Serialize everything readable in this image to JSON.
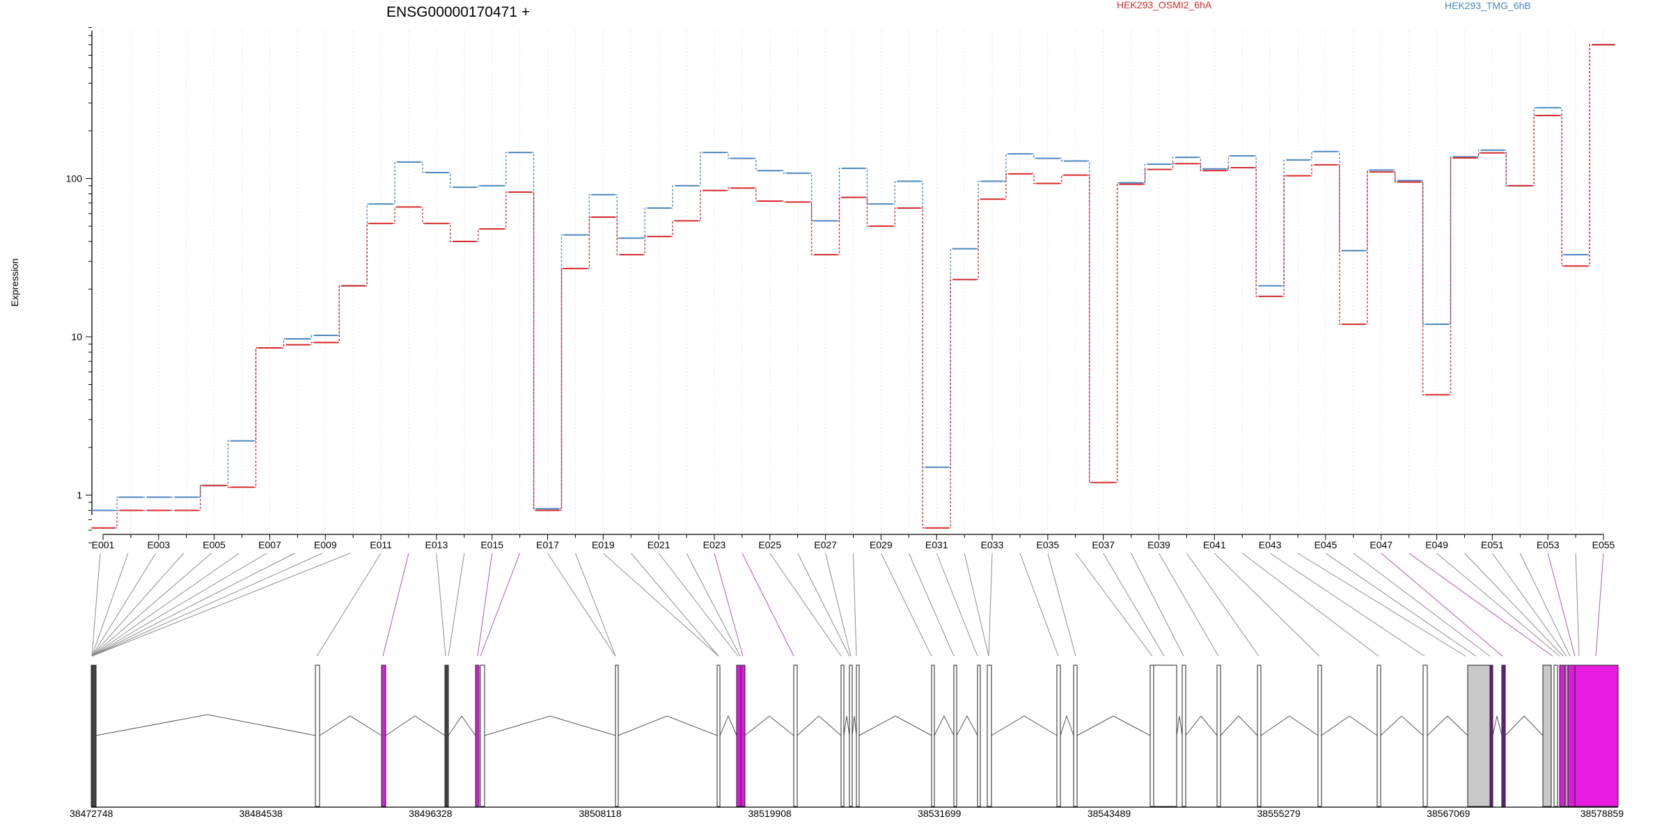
{
  "chart_data": {
    "type": "line",
    "title": "ENSG00000170471 +",
    "xlabel": "",
    "ylabel": "Expression",
    "y_scale": "log",
    "ylim": [
      0.45,
      900
    ],
    "y_ticks": [
      1,
      10,
      100
    ],
    "y_tick_labels": [
      "1",
      "10",
      "100"
    ],
    "grid": "vertical dotted",
    "legend_placement": "top",
    "categories": [
      "E001",
      "E002",
      "E003",
      "E004",
      "E005",
      "E006",
      "E007",
      "E008",
      "E009",
      "E010",
      "E011",
      "E012",
      "E013",
      "E014",
      "E015",
      "E016",
      "E017",
      "E018",
      "E019",
      "E020",
      "E021",
      "E022",
      "E023",
      "E024",
      "E025",
      "E026",
      "E027",
      "E028",
      "E029",
      "E030",
      "E031",
      "E032",
      "E033",
      "E034",
      "E035",
      "E036",
      "E037",
      "E038",
      "E039",
      "E040",
      "E041",
      "E042",
      "E043",
      "E044",
      "E045",
      "E046",
      "E047",
      "E048",
      "E049",
      "E050",
      "E051",
      "E052",
      "E053",
      "E054",
      "E055"
    ],
    "x_tick_labels": [
      "E001",
      "E003",
      "E005",
      "E007",
      "E009",
      "E011",
      "E013",
      "E015",
      "E017",
      "E019",
      "E021",
      "E023",
      "E025",
      "E027",
      "E029",
      "E031",
      "E033",
      "E035",
      "E037",
      "E039",
      "E041",
      "E043",
      "E045",
      "E047",
      "E049",
      "E051",
      "E053",
      "E055"
    ],
    "series": [
      {
        "name": "HEK293_OSMI2_6hA",
        "color": "#d62728",
        "values": [
          0.62,
          0.8,
          0.8,
          0.8,
          1.15,
          1.12,
          8.5,
          8.9,
          9.2,
          21,
          52,
          66,
          52,
          40,
          48,
          82,
          0.8,
          27,
          57,
          33,
          43,
          54,
          84,
          87,
          72,
          71,
          33,
          76,
          50,
          65,
          0.62,
          23,
          74,
          107,
          93,
          105,
          1.2,
          92,
          114,
          124,
          112,
          117,
          18,
          104,
          122,
          12,
          110,
          95,
          4.3,
          135,
          145,
          90,
          250,
          28,
          700
        ]
      },
      {
        "name": "HEK293_TMG_6hB",
        "color": "#4a86c0",
        "values": [
          0.8,
          0.97,
          0.97,
          0.97,
          1.15,
          2.2,
          8.5,
          9.7,
          10.2,
          21,
          69,
          127,
          109,
          88,
          90,
          146,
          0.82,
          44,
          79,
          42,
          65,
          90,
          146,
          134,
          112,
          108,
          54,
          116,
          69,
          96,
          1.5,
          36,
          96,
          143,
          134,
          129,
          1.2,
          94,
          123,
          136,
          115,
          139,
          21,
          131,
          148,
          35,
          113,
          97,
          12,
          137,
          151,
          90,
          280,
          33,
          700
        ]
      }
    ],
    "gene_model": {
      "coord_start": 38472748,
      "coord_end": 38578859,
      "coord_tick_labels": [
        "38472748",
        "38484538",
        "38496328",
        "38508118",
        "38519908",
        "38531699",
        "38543489",
        "38555279",
        "38567069",
        "38578859"
      ]
    }
  }
}
